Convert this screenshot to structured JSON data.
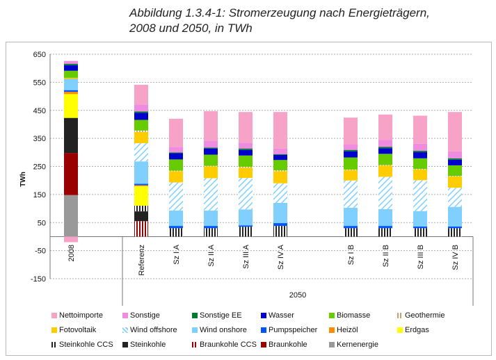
{
  "title_lines": [
    "Abbildung 1.3.4-1: Stromerzeugung nach Energieträgern,",
    "2008 und 2050, in TWh"
  ],
  "chart_data": {
    "type": "bar",
    "stacked": true,
    "ylabel": "TWh",
    "ylim": [
      -150,
      650
    ],
    "yticks": [
      650,
      550,
      450,
      350,
      250,
      150,
      50,
      -50,
      -150
    ],
    "grid": true,
    "group_labels": [
      "2050"
    ],
    "categories": [
      "2008",
      "Referenz",
      "Sz I A",
      "Sz II A",
      "Sz III A",
      "Sz IV A",
      "Sz I B",
      "Sz II B",
      "Sz III B",
      "Sz IV B"
    ],
    "series": [
      {
        "name": "Kernenergie",
        "color": "#999999",
        "pattern": "solid",
        "values": [
          148,
          0,
          0,
          0,
          0,
          0,
          0,
          0,
          0,
          0
        ]
      },
      {
        "name": "Braunkohle",
        "color": "#990000",
        "pattern": "solid",
        "values": [
          150,
          0,
          0,
          0,
          0,
          0,
          0,
          0,
          0,
          0
        ]
      },
      {
        "name": "Braunkohle CCS",
        "color": "#990000",
        "pattern": "vstripe",
        "values": [
          0,
          55,
          0,
          0,
          0,
          0,
          0,
          0,
          0,
          0
        ]
      },
      {
        "name": "Steinkohle",
        "color": "#222222",
        "pattern": "solid",
        "values": [
          125,
          35,
          0,
          0,
          0,
          0,
          0,
          0,
          0,
          0
        ]
      },
      {
        "name": "Steinkohle CCS",
        "color": "#222222",
        "pattern": "vstripe",
        "values": [
          0,
          20,
          30,
          30,
          35,
          38,
          30,
          30,
          30,
          30
        ]
      },
      {
        "name": "Erdgas",
        "color": "#ffff00",
        "pattern": "solid",
        "values": [
          85,
          70,
          0,
          0,
          0,
          0,
          0,
          0,
          0,
          0
        ]
      },
      {
        "name": "Heizöl",
        "color": "#ff8c00",
        "pattern": "solid",
        "values": [
          8,
          3,
          0,
          0,
          0,
          0,
          0,
          0,
          0,
          0
        ]
      },
      {
        "name": "Pumpspeicher",
        "color": "#0055ff",
        "pattern": "solid",
        "values": [
          6,
          5,
          8,
          8,
          5,
          10,
          8,
          8,
          6,
          6
        ]
      },
      {
        "name": "Wind onshore",
        "color": "#7fcfff",
        "pattern": "solid",
        "values": [
          40,
          80,
          55,
          55,
          57,
          72,
          65,
          60,
          55,
          70
        ]
      },
      {
        "name": "Wind offshore",
        "color": "#7fcfff",
        "pattern": "hatch",
        "values": [
          0,
          65,
          100,
          115,
          112,
          70,
          97,
          115,
          110,
          68
        ]
      },
      {
        "name": "Fotovoltaik",
        "color": "#ffcc00",
        "pattern": "solid",
        "values": [
          4,
          40,
          40,
          42,
          37,
          43,
          37,
          40,
          38,
          40
        ]
      },
      {
        "name": "Geothermie",
        "color": "#c8a070",
        "pattern": "vstripe",
        "values": [
          0,
          5,
          2,
          2,
          3,
          3,
          2,
          2,
          2,
          2
        ]
      },
      {
        "name": "Biomasse",
        "color": "#66cc00",
        "pattern": "solid",
        "values": [
          25,
          38,
          40,
          40,
          40,
          37,
          43,
          40,
          38,
          38
        ]
      },
      {
        "name": "Wasser",
        "color": "#0000cc",
        "pattern": "solid",
        "values": [
          20,
          25,
          22,
          22,
          20,
          18,
          22,
          20,
          22,
          20
        ]
      },
      {
        "name": "Sonstige EE",
        "color": "#007a33",
        "pattern": "solid",
        "values": [
          5,
          5,
          3,
          3,
          5,
          3,
          5,
          5,
          5,
          5
        ]
      },
      {
        "name": "Sonstige",
        "color": "#f08ce0",
        "pattern": "solid",
        "values": [
          10,
          25,
          20,
          25,
          20,
          20,
          20,
          25,
          25,
          25
        ]
      },
      {
        "name": "Nettoimporte",
        "color": "#f7a3c8",
        "pattern": "solid",
        "values": [
          -20,
          70,
          100,
          105,
          110,
          130,
          95,
          90,
          100,
          140
        ]
      }
    ],
    "legend_order": [
      "Nettoimporte",
      "Sonstige",
      "Sonstige EE",
      "Wasser",
      "Biomasse",
      "Geothermie",
      "Fotovoltaik",
      "Wind offshore",
      "Wind onshore",
      "Pumpspeicher",
      "Heizöl",
      "Erdgas",
      "Steinkohle CCS",
      "Steinkohle",
      "Braunkohle CCS",
      "Braunkohle",
      "Kernenergie"
    ],
    "legend_position": "bottom"
  }
}
